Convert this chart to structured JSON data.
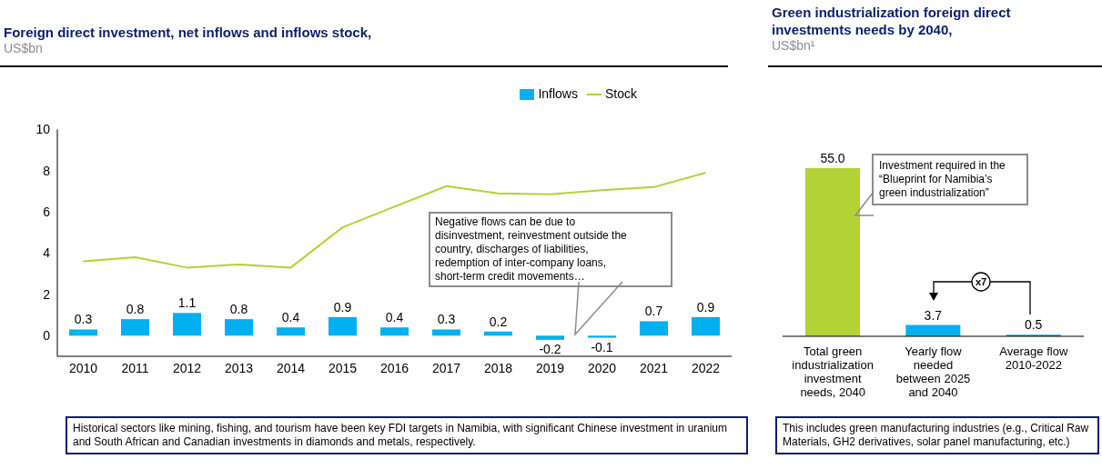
{
  "chart_data": [
    {
      "type": "bar",
      "title": "Foreign direct investment, net inflows and inflows stock,",
      "subtitle": "US$bn",
      "categories": [
        "2010",
        "2011",
        "2012",
        "2013",
        "2014",
        "2015",
        "2016",
        "2017",
        "2018",
        "2019",
        "2020",
        "2021",
        "2022"
      ],
      "series": [
        {
          "name": "Inflows",
          "type": "bar",
          "color": "#00b0f0",
          "values": [
            0.3,
            0.8,
            1.1,
            0.8,
            0.4,
            0.9,
            0.4,
            0.3,
            0.2,
            -0.2,
            -0.1,
            0.7,
            0.9
          ],
          "value_labels": [
            "0.3",
            "0.8",
            "1.1",
            "0.8",
            "0.4",
            "0.9",
            "0.4",
            "0.3",
            "0.2",
            "-0.2",
            "-0.1",
            "0.7",
            "0.9"
          ]
        },
        {
          "name": "Stock",
          "type": "line",
          "color": "#b2d235",
          "values": [
            3.6,
            3.8,
            3.3,
            3.45,
            3.3,
            5.25,
            6.25,
            7.25,
            6.9,
            6.85,
            7.05,
            7.2,
            7.9
          ]
        }
      ],
      "ylim": [
        -1,
        10
      ],
      "yticks": [
        0,
        2,
        4,
        6,
        8,
        10
      ],
      "legend": "top right",
      "annotations": [
        "Negative flows can be due to disinvestment, reinvestment outside the country, discharges of liabilities, redemption of inter-company loans, short-term credit movements…",
        "Historical sectors like mining, fishing, and tourism have been key FDI targets in Namibia, with significant Chinese investment in uranium and South African and Canadian investments in diamonds and metals, respectively."
      ]
    },
    {
      "type": "bar",
      "title": "Green industrialization foreign direct investments needs by 2040,",
      "subtitle": "US$bn¹",
      "categories": [
        "Total green industrialization investment needs, 2040",
        "Yearly flow needed between 2025 and 2040",
        "Average flow 2010-2022"
      ],
      "values": [
        55.0,
        3.7,
        0.5
      ],
      "value_labels": [
        "55.0",
        "3.7",
        "0.5"
      ],
      "colors": [
        "#b2d235",
        "#00b0f0",
        "#00b0f0"
      ],
      "annotations": [
        "Investment required in the “Blueprint for Namibia’s green industrialization”",
        "x7",
        "This includes green manufacturing industries (e.g., Critical Raw Materials, GH2 derivatives, solar panel manufacturing, etc.)"
      ]
    }
  ]
}
